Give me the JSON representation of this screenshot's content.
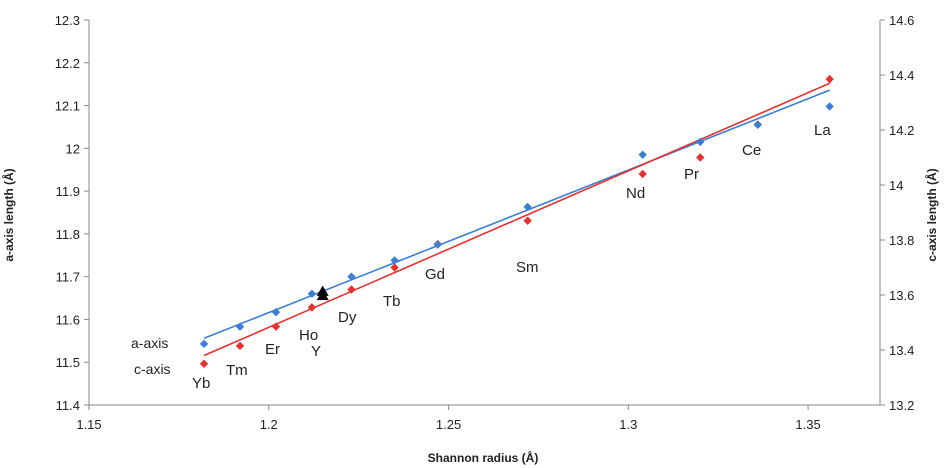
{
  "chart_data": {
    "type": "scatter",
    "title": "",
    "xlabel": "Shannon radius (Å)",
    "ylabel_left": "a-axis length (Å)",
    "ylabel_right": "c-axis length (Å)",
    "xlim": [
      1.15,
      1.37
    ],
    "ylim_left": [
      11.4,
      12.3
    ],
    "ylim_right": [
      13.2,
      14.6
    ],
    "x_ticks": [
      "1.15",
      "1.2",
      "1.25",
      "1.3",
      "1.35"
    ],
    "y_left_ticks": [
      "11.4",
      "11.5",
      "11.6",
      "11.7",
      "11.8",
      "11.9",
      "12",
      "12.1",
      "12.2",
      "12.3"
    ],
    "y_right_ticks": [
      "13.2",
      "13.4",
      "13.6",
      "13.8",
      "14",
      "14.2",
      "14.4",
      "14.6"
    ],
    "grid": false,
    "colors": {
      "a_axis": "#3a7fd5",
      "c_axis": "#e8302e",
      "y_marker": "#000000"
    },
    "series": [
      {
        "name": "a-axis",
        "axis": "left",
        "color": "#3a7fd5",
        "x": [
          1.182,
          1.192,
          1.202,
          1.212,
          1.223,
          1.235,
          1.247,
          1.272,
          1.304,
          1.32,
          1.336,
          1.356
        ],
        "y": [
          11.543,
          11.583,
          11.617,
          11.66,
          11.7,
          11.738,
          11.775,
          11.863,
          11.985,
          12.015,
          12.055,
          12.098
        ],
        "trendline": {
          "x": [
            1.182,
            1.356
          ],
          "y": [
            11.556,
            12.136
          ]
        }
      },
      {
        "name": "c-axis",
        "axis": "right",
        "color": "#e8302e",
        "x": [
          1.182,
          1.192,
          1.202,
          1.212,
          1.223,
          1.235,
          1.247,
          1.272,
          1.304,
          1.32,
          1.336,
          1.356
        ],
        "y": [
          13.35,
          13.415,
          13.485,
          13.555,
          13.62,
          13.7,
          13.785,
          13.87,
          14.04,
          14.1,
          14.22,
          14.385
        ],
        "trendline": {
          "x": [
            1.182,
            1.356
          ],
          "y": [
            13.38,
            14.37
          ]
        }
      }
    ],
    "y_marker": {
      "label": "Y",
      "x": 1.215,
      "y_left": [
        11.665,
        11.655
      ]
    },
    "point_labels": [
      "Yb",
      "Tm",
      "Er",
      "Ho",
      "Dy",
      "Tb",
      "Gd",
      "Sm",
      "Nd",
      "Pr",
      "Ce",
      "La"
    ],
    "legend": {
      "position": "bottom-left",
      "entries": [
        "a-axis",
        "c-axis"
      ]
    }
  }
}
